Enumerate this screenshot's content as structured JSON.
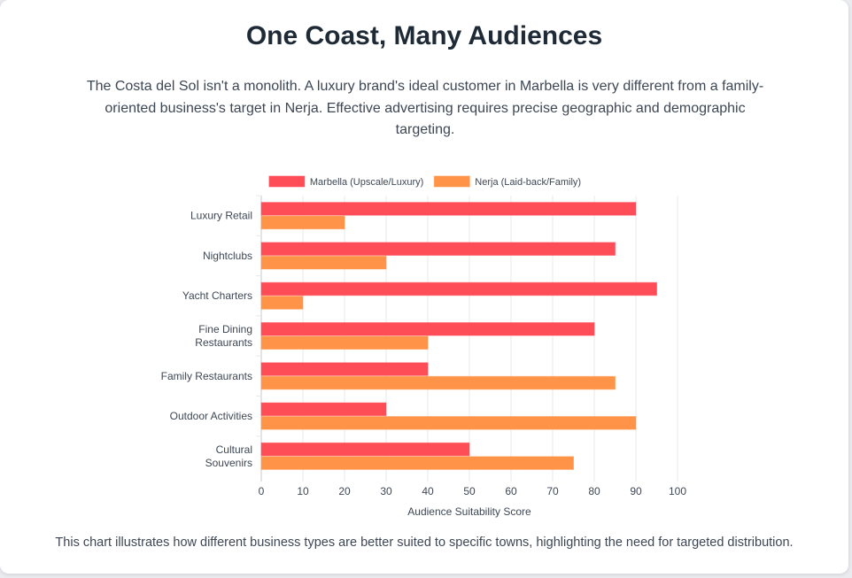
{
  "page": {
    "title": "One Coast, Many Audiences",
    "intro": "The Costa del Sol isn't a monolith. A luxury brand's ideal customer in Marbella is very different from a family-oriented business's target in Nerja. Effective advertising requires precise geographic and demographic targeting.",
    "caption": "This chart illustrates how different business types are better suited to specific towns, highlighting the need for targeted distribution."
  },
  "chart_data": {
    "type": "bar",
    "orientation": "horizontal",
    "categories": [
      [
        "Luxury Retail"
      ],
      [
        "Nightclubs"
      ],
      [
        "Yacht Charters"
      ],
      [
        "Fine Dining",
        "Restaurants"
      ],
      [
        "Family Restaurants"
      ],
      [
        "Outdoor Activities"
      ],
      [
        "Cultural",
        "Souvenirs"
      ]
    ],
    "series": [
      {
        "name": "Marbella (Upscale/Luxury)",
        "color": "#ff4d58",
        "values": [
          90,
          85,
          95,
          80,
          40,
          30,
          50
        ]
      },
      {
        "name": "Nerja (Laid-back/Family)",
        "color": "#ff9448",
        "values": [
          20,
          30,
          10,
          40,
          85,
          90,
          75
        ]
      }
    ],
    "xlabel": "Audience Suitability Score",
    "ylabel": "",
    "xlim": [
      0,
      100
    ],
    "xticks": [
      0,
      10,
      20,
      30,
      40,
      50,
      60,
      70,
      80,
      90,
      100
    ],
    "grid": true,
    "legend": "top-center"
  }
}
